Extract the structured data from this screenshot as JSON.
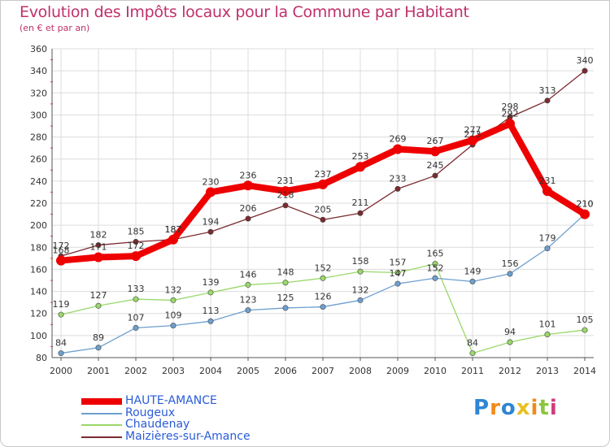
{
  "title": "Evolution des Impôts locaux pour la Commune par Habitant",
  "subtitle": "(en € et par an)",
  "logo_text": "Proxiti",
  "chart_data": {
    "type": "line",
    "x": [
      2000,
      2001,
      2002,
      2003,
      2004,
      2005,
      2006,
      2007,
      2008,
      2009,
      2010,
      2011,
      2012,
      2013,
      2014
    ],
    "ylim": [
      80,
      360
    ],
    "yticks": [
      80,
      100,
      120,
      140,
      160,
      180,
      200,
      220,
      240,
      260,
      280,
      300,
      320,
      340,
      360
    ],
    "grid": true,
    "legend_position": "bottom-left",
    "series": [
      {
        "name": "HAUTE-AMANCE",
        "color": "#ee0000",
        "values": [
          168,
          171,
          172,
          187,
          230,
          236,
          231,
          237,
          253,
          269,
          267,
          277,
          292,
          231,
          210
        ]
      },
      {
        "name": "Rougeux",
        "color": "#6e9fcf",
        "values": [
          84,
          89,
          107,
          109,
          113,
          123,
          125,
          126,
          132,
          147,
          152,
          149,
          156,
          179,
          210
        ]
      },
      {
        "name": "Chaudenay",
        "color": "#9ad86a",
        "values": [
          119,
          127,
          133,
          132,
          139,
          146,
          148,
          152,
          158,
          157,
          165,
          84,
          94,
          101,
          105
        ]
      },
      {
        "name": "Maizières-sur-Amance",
        "color": "#7a2a30",
        "values": [
          172,
          182,
          185,
          187,
          194,
          206,
          218,
          205,
          211,
          233,
          245,
          273,
          298,
          313,
          340
        ]
      }
    ]
  }
}
